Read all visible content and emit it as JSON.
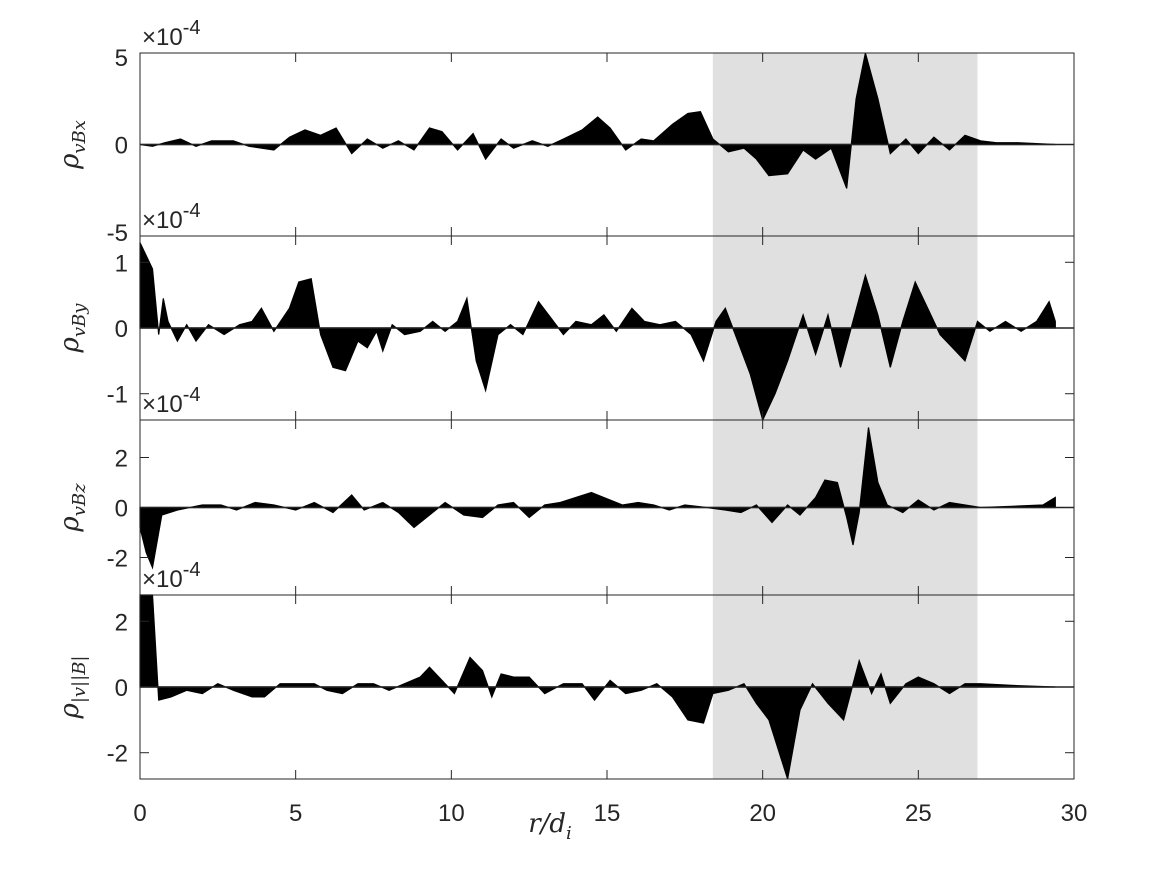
{
  "chart_data": {
    "type": "area",
    "xlabel": "r/d_i",
    "xlim": [
      0,
      30
    ],
    "xticks": [
      "0",
      "5",
      "10",
      "15",
      "20",
      "25",
      "30"
    ],
    "shaded_region": {
      "x_start": 18.4,
      "x_end": 26.9,
      "color": "#e0e0e0"
    },
    "fill_color": "#000000",
    "panels": [
      {
        "ylabel": "ρ_vBx",
        "exponent_label": "×10^-4",
        "ylim": [
          -5,
          5
        ],
        "yticks": [
          "5",
          "0",
          "-5"
        ],
        "ytick_values": [
          5,
          0,
          -5
        ],
        "values": [
          [
            0,
            0
          ],
          [
            0.4,
            -0.1
          ],
          [
            0.8,
            0.1
          ],
          [
            1.3,
            0.3
          ],
          [
            1.8,
            -0.1
          ],
          [
            2.3,
            0.2
          ],
          [
            3,
            0.2
          ],
          [
            3.5,
            -0.1
          ],
          [
            4.3,
            -0.3
          ],
          [
            4.8,
            0.4
          ],
          [
            5.3,
            0.8
          ],
          [
            5.8,
            0.5
          ],
          [
            6.3,
            0.9
          ],
          [
            6.8,
            -0.5
          ],
          [
            7.3,
            0.3
          ],
          [
            7.8,
            -0.2
          ],
          [
            8.3,
            0.2
          ],
          [
            8.8,
            -0.3
          ],
          [
            9.3,
            0.9
          ],
          [
            9.7,
            0.7
          ],
          [
            10.2,
            -0.3
          ],
          [
            10.7,
            0.6
          ],
          [
            11.1,
            -0.8
          ],
          [
            11.6,
            0.3
          ],
          [
            12,
            -0.2
          ],
          [
            12.6,
            0.2
          ],
          [
            13.1,
            -0.1
          ],
          [
            13.6,
            0.3
          ],
          [
            14.2,
            0.8
          ],
          [
            14.7,
            1.5
          ],
          [
            15.1,
            0.9
          ],
          [
            15.6,
            -0.3
          ],
          [
            16.1,
            0.3
          ],
          [
            16.5,
            0.2
          ],
          [
            17.1,
            1.1
          ],
          [
            17.6,
            1.7
          ],
          [
            18,
            1.8
          ],
          [
            18.4,
            0.3
          ],
          [
            18.9,
            -0.4
          ],
          [
            19.4,
            -0.2
          ],
          [
            19.8,
            -0.8
          ],
          [
            20.2,
            -1.7
          ],
          [
            20.8,
            -1.6
          ],
          [
            21.3,
            -0.3
          ],
          [
            21.7,
            -0.8
          ],
          [
            22.2,
            -0.2
          ],
          [
            22.7,
            -2.4
          ],
          [
            23,
            2.5
          ],
          [
            23.3,
            5
          ],
          [
            23.7,
            2.5
          ],
          [
            24.1,
            -0.5
          ],
          [
            24.6,
            0.3
          ],
          [
            25,
            -0.5
          ],
          [
            25.5,
            0.4
          ],
          [
            26,
            -0.3
          ],
          [
            26.5,
            0.5
          ],
          [
            27,
            0.2
          ],
          [
            27.5,
            0.1
          ],
          [
            28.2,
            0.1
          ],
          [
            29.4,
            0
          ]
        ]
      },
      {
        "ylabel": "ρ_vBy",
        "exponent_label": "×10^-4",
        "ylim": [
          -1.4,
          1.4
        ],
        "yticks": [
          "1",
          "0",
          "-1"
        ],
        "ytick_values": [
          1,
          0,
          -1
        ],
        "values": [
          [
            0,
            1.3
          ],
          [
            0.4,
            0.9
          ],
          [
            0.6,
            -0.1
          ],
          [
            0.75,
            0.45
          ],
          [
            0.9,
            0.1
          ],
          [
            1.2,
            -0.2
          ],
          [
            1.5,
            0.05
          ],
          [
            1.8,
            -0.2
          ],
          [
            2.2,
            0.05
          ],
          [
            2.7,
            -0.1
          ],
          [
            3.2,
            0.05
          ],
          [
            3.6,
            0.1
          ],
          [
            3.9,
            0.3
          ],
          [
            4.3,
            -0.05
          ],
          [
            4.8,
            0.3
          ],
          [
            5.1,
            0.7
          ],
          [
            5.5,
            0.75
          ],
          [
            5.8,
            -0.1
          ],
          [
            6.2,
            -0.6
          ],
          [
            6.6,
            -0.65
          ],
          [
            7,
            -0.2
          ],
          [
            7.3,
            -0.3
          ],
          [
            7.6,
            -0.05
          ],
          [
            7.8,
            -0.35
          ],
          [
            8.1,
            0.05
          ],
          [
            8.5,
            -0.1
          ],
          [
            9,
            -0.05
          ],
          [
            9.4,
            0.1
          ],
          [
            9.8,
            -0.05
          ],
          [
            10.2,
            0.1
          ],
          [
            10.5,
            0.45
          ],
          [
            10.8,
            -0.5
          ],
          [
            11.1,
            -0.95
          ],
          [
            11.5,
            -0.1
          ],
          [
            11.9,
            0.05
          ],
          [
            12.3,
            -0.1
          ],
          [
            12.8,
            0.4
          ],
          [
            13.2,
            0.15
          ],
          [
            13.6,
            -0.1
          ],
          [
            14,
            0.1
          ],
          [
            14.5,
            0.05
          ],
          [
            14.9,
            0.2
          ],
          [
            15.3,
            -0.05
          ],
          [
            15.8,
            0.3
          ],
          [
            16.2,
            0.1
          ],
          [
            16.7,
            0.05
          ],
          [
            17.2,
            0.1
          ],
          [
            17.7,
            -0.1
          ],
          [
            18.1,
            -0.5
          ],
          [
            18.5,
            0.1
          ],
          [
            18.8,
            0.3
          ],
          [
            19.2,
            -0.2
          ],
          [
            19.6,
            -0.7
          ],
          [
            20,
            -1.4
          ],
          [
            20.4,
            -1.0
          ],
          [
            20.8,
            -0.5
          ],
          [
            21.3,
            0.2
          ],
          [
            21.7,
            -0.4
          ],
          [
            22.1,
            0.2
          ],
          [
            22.5,
            -0.6
          ],
          [
            22.9,
            0.1
          ],
          [
            23.3,
            0.8
          ],
          [
            23.7,
            0.2
          ],
          [
            24.1,
            -0.6
          ],
          [
            24.5,
            0.1
          ],
          [
            24.9,
            0.7
          ],
          [
            25.3,
            0.3
          ],
          [
            25.7,
            -0.1
          ],
          [
            26.1,
            -0.3
          ],
          [
            26.5,
            -0.5
          ],
          [
            26.9,
            0.1
          ],
          [
            27.3,
            -0.05
          ],
          [
            27.8,
            0.1
          ],
          [
            28.3,
            -0.05
          ],
          [
            28.8,
            0.1
          ],
          [
            29.2,
            0.4
          ],
          [
            29.4,
            0.1
          ]
        ]
      },
      {
        "ylabel": "ρ_vBz",
        "exponent_label": "×10^-4",
        "ylim": [
          -3.5,
          3.5
        ],
        "yticks": [
          "2",
          "0",
          "-2"
        ],
        "ytick_values": [
          2,
          0,
          -2
        ],
        "values": [
          [
            0,
            -0.8
          ],
          [
            0.2,
            -1.8
          ],
          [
            0.4,
            -2.4
          ],
          [
            0.7,
            -0.3
          ],
          [
            1.2,
            -0.1
          ],
          [
            2,
            0.1
          ],
          [
            2.6,
            0.1
          ],
          [
            3.1,
            -0.1
          ],
          [
            3.7,
            0.2
          ],
          [
            4.3,
            0.1
          ],
          [
            5,
            -0.1
          ],
          [
            5.6,
            0.2
          ],
          [
            6.2,
            -0.2
          ],
          [
            6.8,
            0.5
          ],
          [
            7.2,
            -0.1
          ],
          [
            7.8,
            0.2
          ],
          [
            8.3,
            -0.2
          ],
          [
            8.8,
            -0.8
          ],
          [
            9.3,
            -0.3
          ],
          [
            9.8,
            0.2
          ],
          [
            10.4,
            -0.3
          ],
          [
            11,
            -0.4
          ],
          [
            11.5,
            0.1
          ],
          [
            12,
            0.2
          ],
          [
            12.5,
            -0.4
          ],
          [
            13,
            0.1
          ],
          [
            13.5,
            0.2
          ],
          [
            14,
            0.4
          ],
          [
            14.5,
            0.6
          ],
          [
            14.9,
            0.4
          ],
          [
            15.5,
            0.1
          ],
          [
            16,
            0.2
          ],
          [
            16.5,
            0.1
          ],
          [
            17,
            -0.1
          ],
          [
            17.5,
            0.1
          ],
          [
            18.2,
            0
          ],
          [
            18.8,
            -0.1
          ],
          [
            19.3,
            -0.2
          ],
          [
            19.8,
            0.1
          ],
          [
            20.3,
            -0.6
          ],
          [
            20.8,
            0.1
          ],
          [
            21.2,
            -0.3
          ],
          [
            21.7,
            0.4
          ],
          [
            22,
            1.1
          ],
          [
            22.4,
            1.0
          ],
          [
            22.7,
            -0.4
          ],
          [
            22.9,
            -1.5
          ],
          [
            23.1,
            -0.2
          ],
          [
            23.4,
            3.2
          ],
          [
            23.7,
            1.0
          ],
          [
            24,
            0.1
          ],
          [
            24.5,
            -0.2
          ],
          [
            25,
            0.3
          ],
          [
            25.5,
            -0.1
          ],
          [
            26,
            0.2
          ],
          [
            26.5,
            0.1
          ],
          [
            27,
            0
          ],
          [
            28,
            0.05
          ],
          [
            29,
            0.1
          ],
          [
            29.4,
            0.4
          ]
        ]
      },
      {
        "ylabel": "ρ_|v||B|",
        "exponent_label": "×10^-4",
        "ylim": [
          -2.8,
          2.8
        ],
        "yticks": [
          "2",
          "0",
          "-2"
        ],
        "ytick_values": [
          2,
          0,
          -2
        ],
        "values": [
          [
            0,
            2.8
          ],
          [
            0.4,
            2.8
          ],
          [
            0.6,
            -0.4
          ],
          [
            1,
            -0.3
          ],
          [
            1.5,
            -0.1
          ],
          [
            2,
            -0.2
          ],
          [
            2.5,
            0.1
          ],
          [
            3,
            -0.1
          ],
          [
            3.6,
            -0.3
          ],
          [
            4,
            -0.3
          ],
          [
            4.5,
            0.1
          ],
          [
            5,
            0.1
          ],
          [
            5.6,
            0.1
          ],
          [
            6,
            -0.1
          ],
          [
            6.5,
            -0.2
          ],
          [
            7,
            0.1
          ],
          [
            7.5,
            0.1
          ],
          [
            8,
            -0.1
          ],
          [
            8.5,
            0.1
          ],
          [
            9,
            0.3
          ],
          [
            9.3,
            0.6
          ],
          [
            9.7,
            0.2
          ],
          [
            10.1,
            -0.2
          ],
          [
            10.6,
            0.9
          ],
          [
            11,
            0.5
          ],
          [
            11.3,
            -0.3
          ],
          [
            11.6,
            0.4
          ],
          [
            12,
            0.3
          ],
          [
            12.5,
            0.3
          ],
          [
            13,
            -0.2
          ],
          [
            13.6,
            0.1
          ],
          [
            14.2,
            0.1
          ],
          [
            14.6,
            -0.4
          ],
          [
            15.1,
            0.2
          ],
          [
            15.6,
            -0.2
          ],
          [
            16.1,
            -0.1
          ],
          [
            16.6,
            0.1
          ],
          [
            17.1,
            -0.3
          ],
          [
            17.6,
            -1.0
          ],
          [
            18.1,
            -1.1
          ],
          [
            18.4,
            -0.2
          ],
          [
            18.9,
            -0.1
          ],
          [
            19.4,
            0.1
          ],
          [
            19.8,
            -0.5
          ],
          [
            20.2,
            -1.0
          ],
          [
            20.8,
            -2.8
          ],
          [
            21.2,
            -0.7
          ],
          [
            21.6,
            0.1
          ],
          [
            22.1,
            -0.5
          ],
          [
            22.6,
            -1.0
          ],
          [
            23.1,
            0.8
          ],
          [
            23.5,
            -0.2
          ],
          [
            23.8,
            0.4
          ],
          [
            24.1,
            -0.5
          ],
          [
            24.6,
            0.1
          ],
          [
            25,
            0.3
          ],
          [
            25.5,
            0.1
          ],
          [
            26,
            -0.2
          ],
          [
            26.5,
            0.1
          ],
          [
            27,
            0.1
          ],
          [
            28,
            0.05
          ],
          [
            29.4,
            0
          ]
        ]
      }
    ]
  }
}
